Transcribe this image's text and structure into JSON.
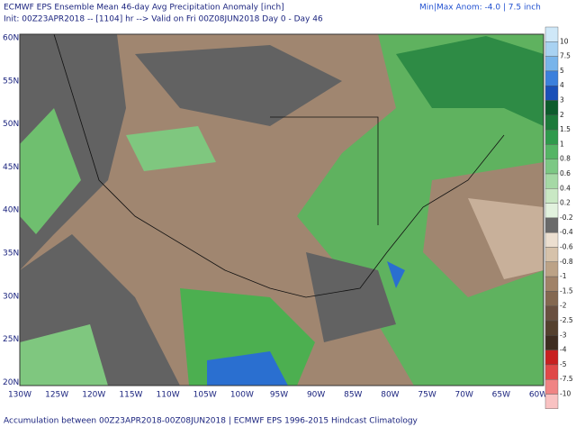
{
  "header": {
    "title": "ECMWF EPS Ensemble Mean 46-day Avg Precipitation Anomaly [inch]",
    "subtitle": "Init: 00Z23APR2018 -- [1104] hr --> Valid on Fri 00Z08JUN2018  Day 0 - Day 46",
    "minmax": "Min|Max Anom: -4.0 | 7.5 inch"
  },
  "map": {
    "lat_labels": [
      "60N",
      "55N",
      "50N",
      "45N",
      "40N",
      "35N",
      "30N",
      "25N",
      "20N"
    ],
    "lon_labels": [
      "130W",
      "125W",
      "120W",
      "115W",
      "110W",
      "105W",
      "100W",
      "95W",
      "90W",
      "85W",
      "80W",
      "75W",
      "70W",
      "65W",
      "60W"
    ]
  },
  "colorbar": {
    "labels": [
      "10",
      "7.5",
      "5",
      "4",
      "3",
      "2",
      "1.5",
      "1",
      "0.8",
      "0.6",
      "0.4",
      "0.2",
      "-0.2",
      "-0.4",
      "-0.6",
      "-0.8",
      "-1",
      "-1.5",
      "-2",
      "-2.5",
      "-3",
      "-4",
      "-5",
      "-7.5",
      "-10"
    ]
  },
  "footer": "Accumulation between 00Z23APR2018-00Z08JUN2018 | ECMWF EPS 1996-2015 Hindcast Climatology"
}
